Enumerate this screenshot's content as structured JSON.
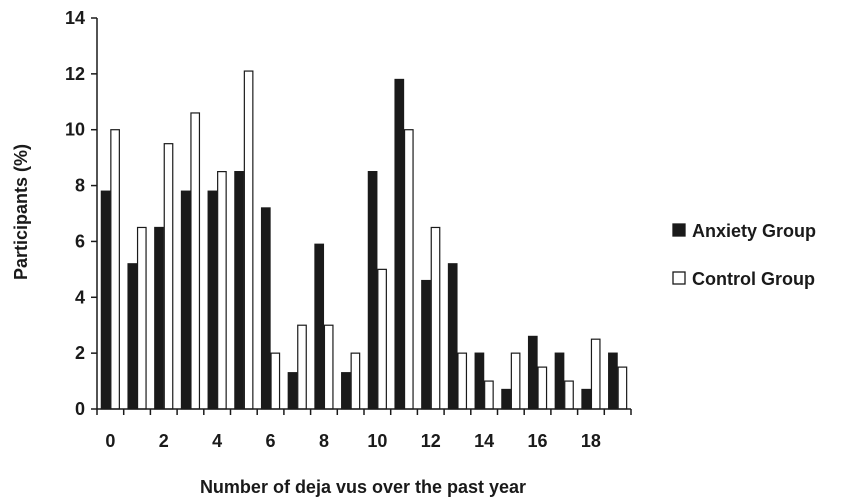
{
  "chart_data": {
    "type": "bar",
    "title": "",
    "xlabel": "Number of deja vus over the past year",
    "ylabel": "Participants (%)",
    "ylim": [
      0,
      14
    ],
    "yticks": [
      "0",
      "2",
      "4",
      "6",
      "8",
      "10",
      "12",
      "14"
    ],
    "categories": [
      "0",
      "1",
      "2",
      "3",
      "4",
      "5",
      "6",
      "7",
      "8",
      "9",
      "10",
      "11",
      "12",
      "13",
      "14",
      "15",
      "16",
      "17",
      "18",
      "19"
    ],
    "xtick_labels": [
      "0",
      "",
      "2",
      "",
      "4",
      "",
      "6",
      "",
      "8",
      "",
      "10",
      "",
      "12",
      "",
      "14",
      "",
      "16",
      "",
      "18",
      ""
    ],
    "series": [
      {
        "name": "Anxiety Group",
        "color": "#1a1a1a",
        "values": [
          7.8,
          5.2,
          6.5,
          7.8,
          7.8,
          8.5,
          7.2,
          1.3,
          5.9,
          1.3,
          8.5,
          11.8,
          4.6,
          5.2,
          2.0,
          0.7,
          2.6,
          2.0,
          0.7,
          2.0
        ]
      },
      {
        "name": "Control Group",
        "color": "#ffffff",
        "values": [
          10.0,
          6.5,
          9.5,
          10.6,
          8.5,
          12.1,
          2.0,
          3.0,
          3.0,
          2.0,
          5.0,
          10.0,
          6.5,
          2.0,
          1.0,
          2.0,
          1.5,
          1.0,
          2.5,
          1.5
        ]
      }
    ],
    "legend_position": "right",
    "grid": false
  }
}
